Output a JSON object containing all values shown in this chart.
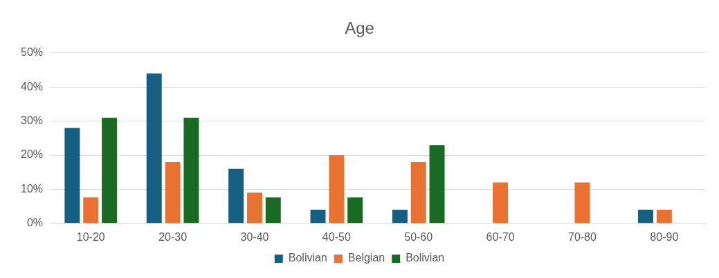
{
  "chart_data": {
    "type": "bar",
    "title": "Age",
    "categories": [
      "10-20",
      "20-30",
      "30-40",
      "40-50",
      "50-60",
      "60-70",
      "70-80",
      "80-90"
    ],
    "series": [
      {
        "name": "Bolivian",
        "color": "#156082",
        "values": [
          28,
          44,
          16,
          4,
          4,
          0,
          0,
          4
        ]
      },
      {
        "name": "Belgian",
        "color": "#e97132",
        "values": [
          7.6,
          18,
          9,
          20,
          18,
          12,
          12,
          4
        ]
      },
      {
        "name": "Bolivian",
        "color": "#196b24",
        "values": [
          31,
          31,
          7.6,
          7.6,
          23,
          0,
          0,
          0
        ]
      }
    ],
    "ylim": [
      0,
      50
    ],
    "yticks": [
      {
        "value": 0,
        "label": "0%"
      },
      {
        "value": 10,
        "label": "10%"
      },
      {
        "value": 20,
        "label": "20%"
      },
      {
        "value": 30,
        "label": "30%"
      },
      {
        "value": 40,
        "label": "40%"
      },
      {
        "value": 50,
        "label": "50%"
      }
    ],
    "grid": "y",
    "legend": "bottom"
  }
}
